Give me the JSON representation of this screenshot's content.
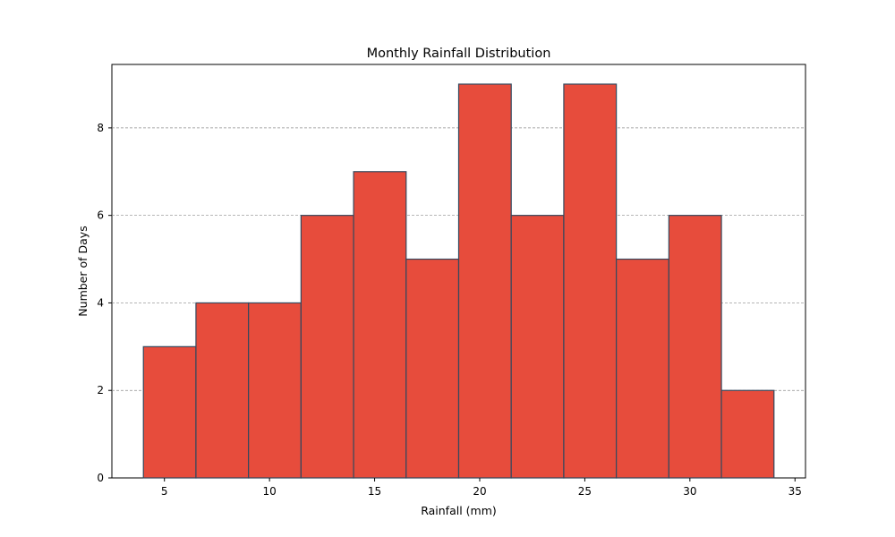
{
  "chart_data": {
    "type": "bar",
    "title": "Monthly Rainfall Distribution",
    "xlabel": "Rainfall (mm)",
    "ylabel": "Number of Days",
    "bin_edges": [
      4,
      6.5,
      9,
      11.5,
      14,
      16.5,
      19,
      21.5,
      24,
      26.5,
      29,
      31.5,
      34
    ],
    "values": [
      3,
      4,
      4,
      6,
      7,
      5,
      9,
      6,
      9,
      5,
      6,
      2
    ],
    "xlim": [
      2.5,
      35.5
    ],
    "ylim": [
      0,
      9.45
    ],
    "x_ticks": [
      5,
      10,
      15,
      20,
      25,
      30,
      35
    ],
    "y_ticks": [
      0,
      2,
      4,
      6,
      8
    ],
    "grid": {
      "axis": "y",
      "style": "dashed",
      "color": "#8c8c8c"
    },
    "bar_color": "#e74c3c",
    "edge_color": "#34495e"
  }
}
